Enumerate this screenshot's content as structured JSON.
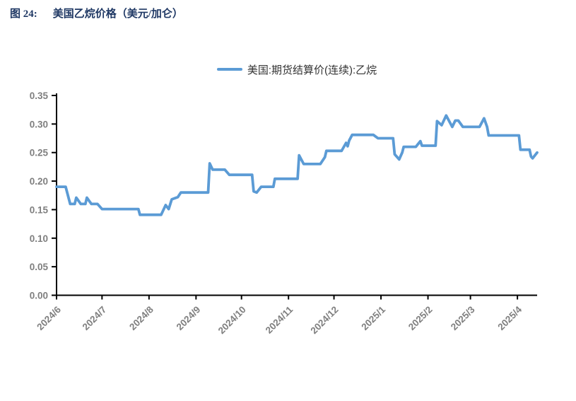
{
  "figure": {
    "label": "图 24:",
    "title": "美国乙烷价格（美元/加仑）",
    "title_color": "#1f3864"
  },
  "colors": {
    "background": "#ffffff",
    "axis": "#000000",
    "tick_label": "#7f7f7f",
    "legend_text": "#333333",
    "series_line": "#5b9bd5"
  },
  "chart_data": {
    "type": "line",
    "title": "美国乙烷价格（美元/加仑）",
    "legend": {
      "label": "美国:期货结算价(连续):乙烷",
      "color": "#5b9bd5",
      "position": "top-center"
    },
    "grid": false,
    "x_axis": {
      "type": "time",
      "range": [
        "2024-06-01",
        "2025-04-14"
      ],
      "ticks": [
        {
          "date": "2024-06-01",
          "label": "2024/6"
        },
        {
          "date": "2024-07-01",
          "label": "2024/7"
        },
        {
          "date": "2024-08-01",
          "label": "2024/8"
        },
        {
          "date": "2024-09-01",
          "label": "2024/9"
        },
        {
          "date": "2024-10-01",
          "label": "2024/10"
        },
        {
          "date": "2024-11-01",
          "label": "2024/11"
        },
        {
          "date": "2024-12-01",
          "label": "2024/12"
        },
        {
          "date": "2025-01-01",
          "label": "2025/1"
        },
        {
          "date": "2025-02-01",
          "label": "2025/2"
        },
        {
          "date": "2025-03-01",
          "label": "2025/3"
        },
        {
          "date": "2025-04-01",
          "label": "2025/4"
        }
      ]
    },
    "y_axis": {
      "min": 0,
      "max": 0.35,
      "tick_step": 0.05,
      "ticks": [
        {
          "v": 0.0,
          "label": "0.00"
        },
        {
          "v": 0.05,
          "label": "0.05"
        },
        {
          "v": 0.1,
          "label": "0.10"
        },
        {
          "v": 0.15,
          "label": "0.15"
        },
        {
          "v": 0.2,
          "label": "0.20"
        },
        {
          "v": 0.25,
          "label": "0.25"
        },
        {
          "v": 0.3,
          "label": "0.30"
        },
        {
          "v": 0.35,
          "label": "0.35"
        }
      ]
    },
    "series": [
      {
        "name": "美国:期货结算价(连续):乙烷",
        "color": "#5b9bd5",
        "points": [
          [
            "2024-06-01",
            0.19
          ],
          [
            "2024-06-07",
            0.19
          ],
          [
            "2024-06-10",
            0.16
          ],
          [
            "2024-06-13",
            0.16
          ],
          [
            "2024-06-14",
            0.171
          ],
          [
            "2024-06-17",
            0.16
          ],
          [
            "2024-06-20",
            0.16
          ],
          [
            "2024-06-21",
            0.171
          ],
          [
            "2024-06-24",
            0.16
          ],
          [
            "2024-06-28",
            0.16
          ],
          [
            "2024-07-01",
            0.151
          ],
          [
            "2024-07-25",
            0.151
          ],
          [
            "2024-07-26",
            0.141
          ],
          [
            "2024-08-09",
            0.141
          ],
          [
            "2024-08-12",
            0.158
          ],
          [
            "2024-08-14",
            0.151
          ],
          [
            "2024-08-16",
            0.168
          ],
          [
            "2024-08-20",
            0.172
          ],
          [
            "2024-08-22",
            0.18
          ],
          [
            "2024-09-09",
            0.18
          ],
          [
            "2024-09-10",
            0.231
          ],
          [
            "2024-09-12",
            0.22
          ],
          [
            "2024-09-20",
            0.22
          ],
          [
            "2024-09-23",
            0.211
          ],
          [
            "2024-10-08",
            0.211
          ],
          [
            "2024-10-09",
            0.182
          ],
          [
            "2024-10-11",
            0.18
          ],
          [
            "2024-10-14",
            0.19
          ],
          [
            "2024-10-22",
            0.19
          ],
          [
            "2024-10-23",
            0.204
          ],
          [
            "2024-11-07",
            0.204
          ],
          [
            "2024-11-08",
            0.245
          ],
          [
            "2024-11-11",
            0.23
          ],
          [
            "2024-11-22",
            0.23
          ],
          [
            "2024-11-25",
            0.242
          ],
          [
            "2024-11-26",
            0.253
          ],
          [
            "2024-12-06",
            0.253
          ],
          [
            "2024-12-09",
            0.267
          ],
          [
            "2024-12-10",
            0.261
          ],
          [
            "2024-12-11",
            0.271
          ],
          [
            "2024-12-13",
            0.281
          ],
          [
            "2024-12-27",
            0.281
          ],
          [
            "2024-12-30",
            0.275
          ],
          [
            "2025-01-09",
            0.275
          ],
          [
            "2025-01-10",
            0.247
          ],
          [
            "2025-01-13",
            0.238
          ],
          [
            "2025-01-15",
            0.25
          ],
          [
            "2025-01-16",
            0.26
          ],
          [
            "2025-01-24",
            0.26
          ],
          [
            "2025-01-27",
            0.27
          ],
          [
            "2025-01-28",
            0.262
          ],
          [
            "2025-02-06",
            0.262
          ],
          [
            "2025-02-07",
            0.305
          ],
          [
            "2025-02-10",
            0.298
          ],
          [
            "2025-02-13",
            0.315
          ],
          [
            "2025-02-17",
            0.295
          ],
          [
            "2025-02-19",
            0.306
          ],
          [
            "2025-02-21",
            0.306
          ],
          [
            "2025-02-24",
            0.295
          ],
          [
            "2025-03-07",
            0.295
          ],
          [
            "2025-03-10",
            0.31
          ],
          [
            "2025-03-12",
            0.295
          ],
          [
            "2025-03-13",
            0.28
          ],
          [
            "2025-04-02",
            0.28
          ],
          [
            "2025-04-03",
            0.255
          ],
          [
            "2025-04-09",
            0.255
          ],
          [
            "2025-04-10",
            0.243
          ],
          [
            "2025-04-11",
            0.24
          ],
          [
            "2025-04-14",
            0.25
          ]
        ]
      }
    ]
  }
}
